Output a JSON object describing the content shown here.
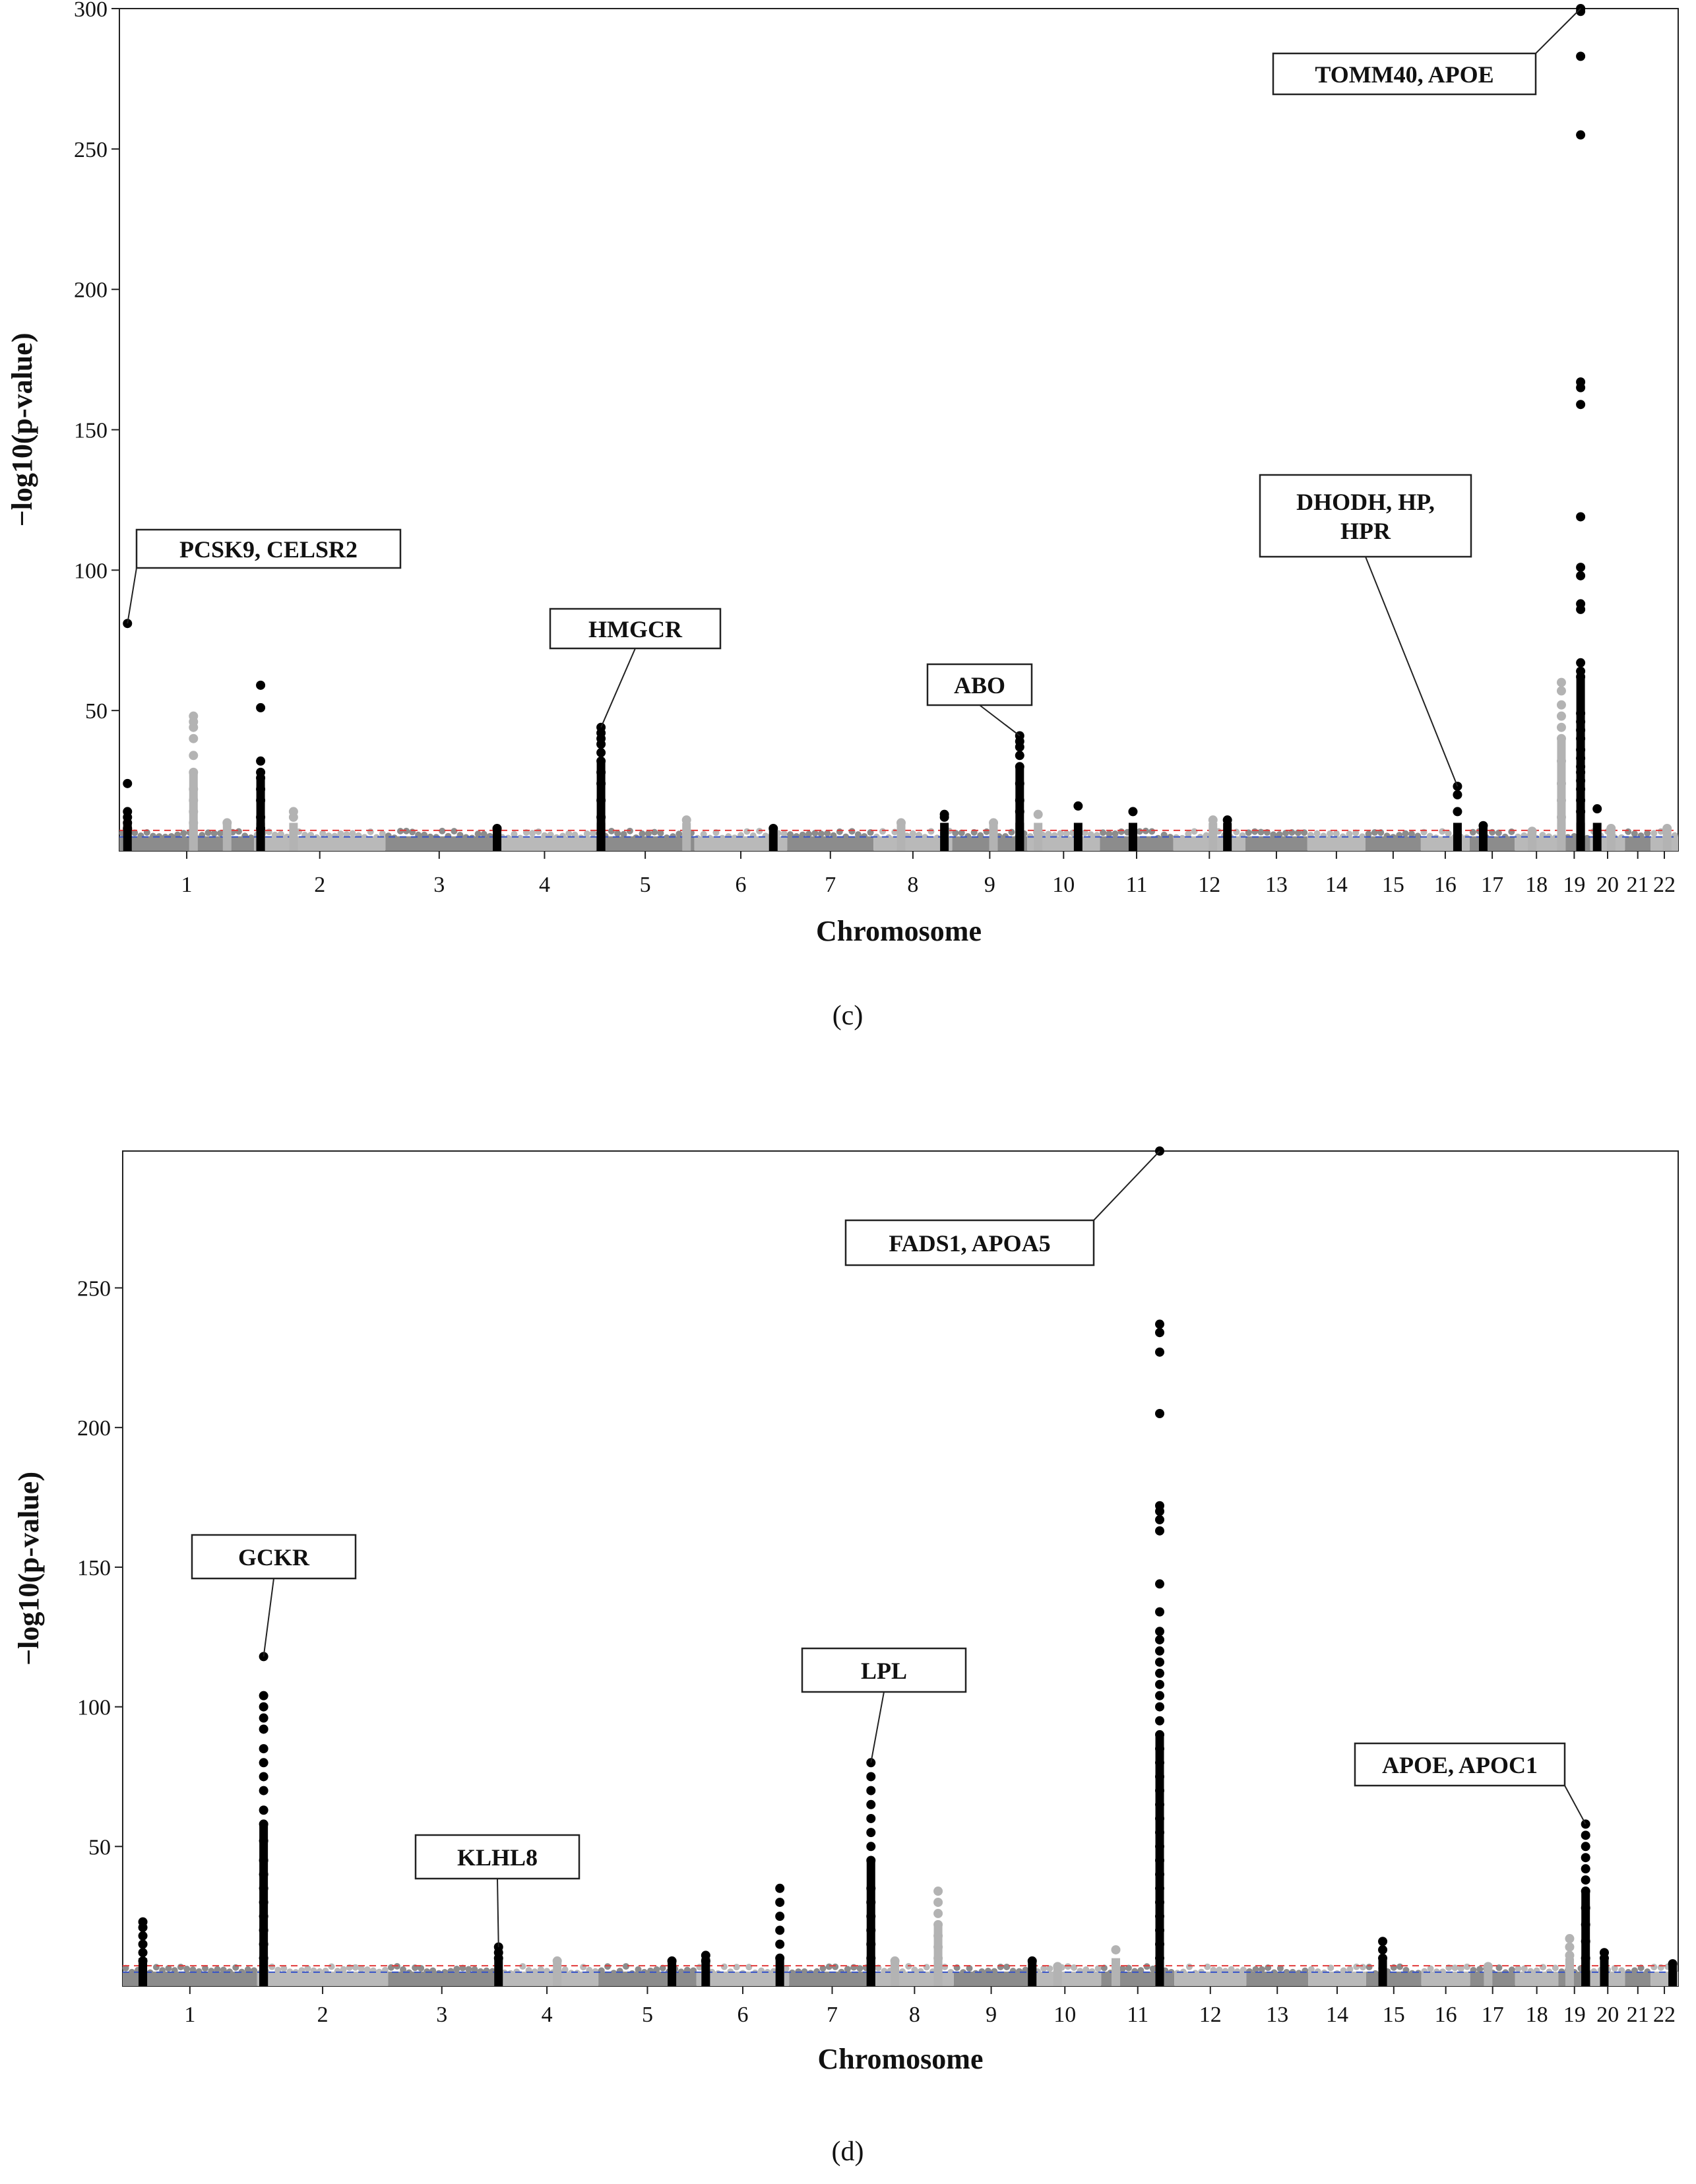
{
  "chart_data": [
    {
      "panel": "(c)",
      "type": "scatter",
      "subtype": "manhattan",
      "xlabel": "Chromosome",
      "ylabel": "−log10(p-value)",
      "ylim": [
        0,
        300
      ],
      "y_ticks": [
        50,
        100,
        150,
        200,
        250,
        300
      ],
      "thresholds": {
        "genome_wide": 7.3,
        "suggestive": 5
      },
      "chromosomes": [
        "1",
        "2",
        "3",
        "4",
        "5",
        "6",
        "7",
        "8",
        "9",
        "10",
        "11",
        "12",
        "13",
        "14",
        "15",
        "16",
        "17",
        "18",
        "19",
        "20",
        "21",
        "22"
      ],
      "peaks": [
        {
          "chr": 1,
          "pos": 0.06,
          "values": [
            81,
            24,
            14,
            12,
            10,
            8
          ],
          "color": "black"
        },
        {
          "chr": 1,
          "pos": 0.55,
          "values": [
            48,
            46,
            44,
            40,
            34,
            28,
            22,
            18,
            14,
            10
          ],
          "color": "gray"
        },
        {
          "chr": 1,
          "pos": 0.8,
          "values": [
            10
          ],
          "color": "gray"
        },
        {
          "chr": 2,
          "pos": 0.05,
          "values": [
            59,
            51,
            32,
            28,
            26,
            22,
            18,
            12,
            8
          ],
          "color": "black"
        },
        {
          "chr": 2,
          "pos": 0.3,
          "values": [
            14,
            12
          ],
          "color": "gray"
        },
        {
          "chr": 4,
          "pos": 0.04,
          "values": [
            8
          ],
          "color": "black"
        },
        {
          "chr": 5,
          "pos": 0.05,
          "values": [
            44,
            42,
            40,
            38,
            35,
            32,
            28,
            24,
            18,
            12
          ],
          "color": "black"
        },
        {
          "chr": 5,
          "pos": 0.92,
          "values": [
            11
          ],
          "color": "gray"
        },
        {
          "chr": 6,
          "pos": 0.85,
          "values": [
            8
          ],
          "color": "black"
        },
        {
          "chr": 8,
          "pos": 0.35,
          "values": [
            10
          ],
          "color": "gray"
        },
        {
          "chr": 8,
          "pos": 0.9,
          "values": [
            13,
            12
          ],
          "color": "black"
        },
        {
          "chr": 9,
          "pos": 0.55,
          "values": [
            10
          ],
          "color": "gray"
        },
        {
          "chr": 9,
          "pos": 0.9,
          "values": [
            41,
            39,
            37,
            34,
            30,
            24,
            18,
            14
          ],
          "color": "black"
        },
        {
          "chr": 10,
          "pos": 0.15,
          "values": [
            13
          ],
          "color": "gray"
        },
        {
          "chr": 10,
          "pos": 0.7,
          "values": [
            16
          ],
          "color": "black"
        },
        {
          "chr": 11,
          "pos": 0.45,
          "values": [
            14
          ],
          "color": "black"
        },
        {
          "chr": 12,
          "pos": 0.55,
          "values": [
            11
          ],
          "color": "gray"
        },
        {
          "chr": 12,
          "pos": 0.75,
          "values": [
            11
          ],
          "color": "black"
        },
        {
          "chr": 16,
          "pos": 0.75,
          "values": [
            23,
            20,
            14
          ],
          "color": "black"
        },
        {
          "chr": 17,
          "pos": 0.3,
          "values": [
            9
          ],
          "color": "black"
        },
        {
          "chr": 18,
          "pos": 0.4,
          "values": [
            7
          ],
          "color": "gray"
        },
        {
          "chr": 19,
          "pos": 0.1,
          "values": [
            60,
            57,
            52,
            48,
            44,
            40,
            32,
            24,
            18,
            12
          ],
          "color": "gray"
        },
        {
          "chr": 19,
          "pos": 0.7,
          "values": [
            305,
            299,
            283,
            255,
            167,
            165,
            159,
            119,
            101,
            98,
            88,
            86,
            67,
            64,
            62,
            49,
            46,
            43,
            40,
            36,
            33,
            30,
            28,
            25,
            22,
            18,
            14
          ],
          "color": "black"
        },
        {
          "chr": 20,
          "pos": 0.2,
          "values": [
            15
          ],
          "color": "black"
        },
        {
          "chr": 20,
          "pos": 0.6,
          "values": [
            8
          ],
          "color": "gray"
        },
        {
          "chr": 22,
          "pos": 0.6,
          "values": [
            8
          ],
          "color": "gray"
        }
      ],
      "annotations": [
        {
          "lines": [
            "PCSK9, CELSR2"
          ],
          "target_chr": 1,
          "target_pos": 0.06,
          "target_y": 81
        },
        {
          "lines": [
            "HMGCR"
          ],
          "target_chr": 5,
          "target_pos": 0.05,
          "target_y": 44
        },
        {
          "lines": [
            "ABO"
          ],
          "target_chr": 9,
          "target_pos": 0.9,
          "target_y": 41
        },
        {
          "lines": [
            "DHODH, HP,",
            "HPR"
          ],
          "target_chr": 16,
          "target_pos": 0.75,
          "target_y": 23
        },
        {
          "lines": [
            "TOMM40, APOE"
          ],
          "target_chr": 19,
          "target_pos": 0.7,
          "target_y": 305
        }
      ]
    },
    {
      "panel": "(d)",
      "type": "scatter",
      "subtype": "manhattan",
      "xlabel": "Chromosome",
      "ylabel": "−log10(p-value)",
      "ylim": [
        0,
        300
      ],
      "y_ticks": [
        50,
        100,
        150,
        200,
        250
      ],
      "thresholds": {
        "genome_wide": 7.3,
        "suggestive": 5
      },
      "chromosomes": [
        "1",
        "2",
        "3",
        "4",
        "5",
        "6",
        "7",
        "8",
        "9",
        "10",
        "11",
        "12",
        "13",
        "14",
        "15",
        "16",
        "17",
        "18",
        "19",
        "20",
        "21",
        "22"
      ],
      "peaks": [
        {
          "chr": 1,
          "pos": 0.15,
          "values": [
            23,
            21,
            18,
            15,
            12,
            9
          ],
          "color": "black"
        },
        {
          "chr": 2,
          "pos": 0.05,
          "values": [
            118,
            104,
            100,
            96,
            92,
            85,
            80,
            75,
            70,
            63,
            58,
            52,
            45,
            40,
            35,
            30,
            25,
            20,
            15,
            10
          ],
          "color": "black"
        },
        {
          "chr": 4,
          "pos": 0.03,
          "values": [
            14,
            12,
            10
          ],
          "color": "black"
        },
        {
          "chr": 4,
          "pos": 0.6,
          "values": [
            9
          ],
          "color": "gray"
        },
        {
          "chr": 5,
          "pos": 0.75,
          "values": [
            9
          ],
          "color": "black"
        },
        {
          "chr": 6,
          "pos": 0.1,
          "values": [
            11,
            9
          ],
          "color": "black"
        },
        {
          "chr": 6,
          "pos": 0.9,
          "values": [
            35,
            30,
            25,
            20,
            15,
            10
          ],
          "color": "black"
        },
        {
          "chr": 7,
          "pos": 0.95,
          "values": [
            80,
            75,
            70,
            65,
            60,
            55,
            50,
            45,
            35,
            30,
            25,
            20,
            15,
            10
          ],
          "color": "black"
        },
        {
          "chr": 8,
          "pos": 0.25,
          "values": [
            9
          ],
          "color": "gray"
        },
        {
          "chr": 8,
          "pos": 0.8,
          "values": [
            34,
            30,
            26,
            22,
            18,
            14,
            10
          ],
          "color": "gray"
        },
        {
          "chr": 10,
          "pos": 0.05,
          "values": [
            9
          ],
          "color": "black"
        },
        {
          "chr": 10,
          "pos": 0.4,
          "values": [
            7
          ],
          "color": "gray"
        },
        {
          "chr": 11,
          "pos": 0.2,
          "values": [
            13
          ],
          "color": "gray"
        },
        {
          "chr": 11,
          "pos": 0.8,
          "values": [
            299,
            237,
            234,
            227,
            205,
            172,
            170,
            167,
            163,
            144,
            134,
            127,
            124,
            120,
            116,
            112,
            108,
            104,
            100,
            95,
            90,
            85,
            80,
            75,
            70,
            65,
            60,
            55,
            50,
            45,
            40,
            35,
            30,
            25,
            20,
            15,
            10
          ],
          "color": "black"
        },
        {
          "chr": 15,
          "pos": 0.3,
          "values": [
            16,
            13,
            10
          ],
          "color": "black"
        },
        {
          "chr": 17,
          "pos": 0.4,
          "values": [
            7
          ],
          "color": "gray"
        },
        {
          "chr": 19,
          "pos": 0.35,
          "values": [
            17,
            14,
            11
          ],
          "color": "gray"
        },
        {
          "chr": 19,
          "pos": 0.85,
          "values": [
            58,
            54,
            50,
            46,
            42,
            38,
            34,
            28,
            22,
            16,
            10
          ],
          "color": "black"
        },
        {
          "chr": 20,
          "pos": 0.4,
          "values": [
            12,
            10
          ],
          "color": "black"
        },
        {
          "chr": 22,
          "pos": 0.8,
          "values": [
            8
          ],
          "color": "black"
        }
      ],
      "annotations": [
        {
          "lines": [
            "GCKR"
          ],
          "target_chr": 2,
          "target_pos": 0.05,
          "target_y": 118
        },
        {
          "lines": [
            "KLHL8"
          ],
          "target_chr": 4,
          "target_pos": 0.03,
          "target_y": 14
        },
        {
          "lines": [
            "LPL"
          ],
          "target_chr": 7,
          "target_pos": 0.95,
          "target_y": 80
        },
        {
          "lines": [
            "FADS1, APOA5"
          ],
          "target_chr": 11,
          "target_pos": 0.8,
          "target_y": 299
        },
        {
          "lines": [
            "APOE, APOC1"
          ],
          "target_chr": 19,
          "target_pos": 0.85,
          "target_y": 58
        }
      ]
    }
  ],
  "colors": {
    "peak_black": "#000000",
    "peak_gray": "#b3b3b3",
    "band_dark": "#8c8c8c",
    "band_light": "#b9b9b9",
    "threshold_red": "#e23a3a",
    "threshold_blue": "#3552c8"
  }
}
